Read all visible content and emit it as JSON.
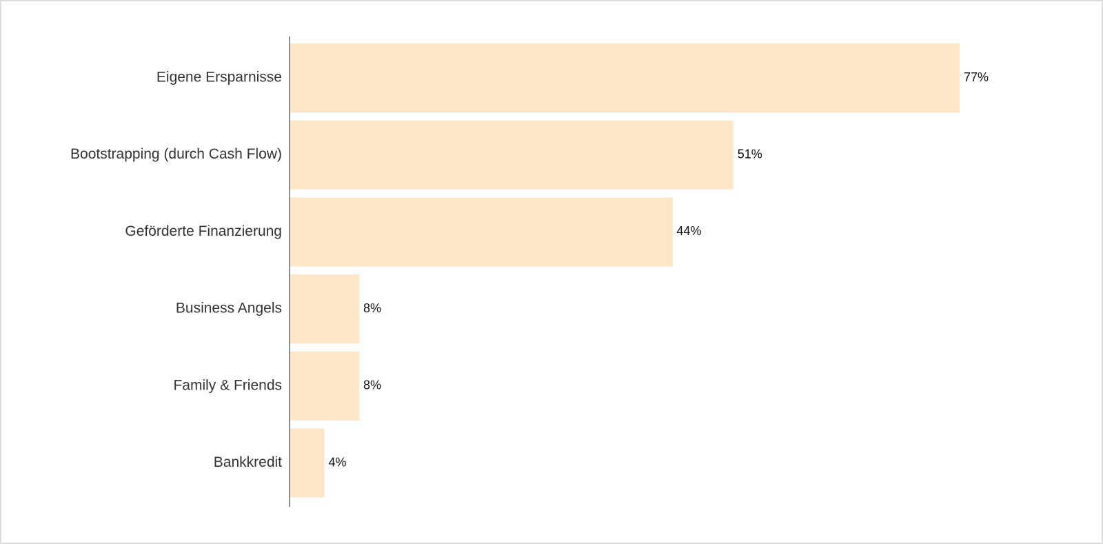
{
  "chart_data": {
    "type": "hbar",
    "categories": [
      "Eigene Ersparnisse",
      "Bootstrapping (durch Cash Flow)",
      "Geförderte Finanzierung",
      "Business Angels",
      "Family & Friends",
      "Bankkredit"
    ],
    "values": [
      77,
      51,
      44,
      8,
      8,
      4
    ],
    "value_labels": [
      "77%",
      "51%",
      "44%",
      "8%",
      "8%",
      "4%"
    ],
    "color": "#fde6c8"
  }
}
